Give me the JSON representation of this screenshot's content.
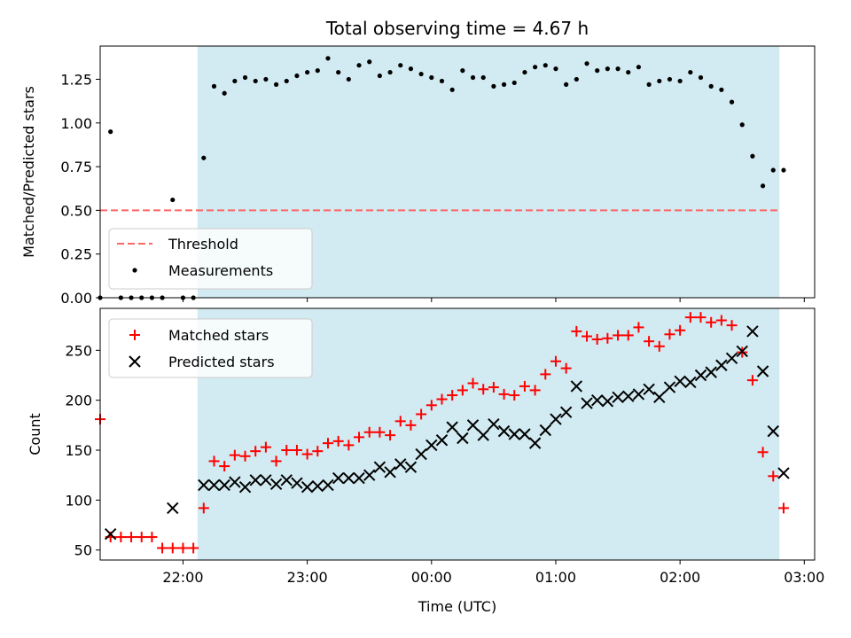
{
  "chart_data": [
    {
      "type": "scatter",
      "title": "Total observing time = 4.67 h",
      "xlabel": "",
      "ylabel": "Matched/Predicted stars",
      "ylim": [
        0,
        1.44
      ],
      "xlim": [
        "21:20",
        "03:05"
      ],
      "yticks": [
        "0.00",
        "0.25",
        "0.50",
        "0.75",
        "1.00",
        "1.25"
      ],
      "shaded_span": {
        "start": "22:07",
        "end": "02:48",
        "color": "#add8e6"
      },
      "threshold": {
        "name": "Threshold",
        "value": 0.5,
        "from": "21:20",
        "to": "02:48",
        "color": "#ff6666"
      },
      "legend_position": "lower-left",
      "series": [
        {
          "name": "Measurements",
          "marker": "dot",
          "color": "#000000",
          "points": [
            [
              "21:20",
              0.0
            ],
            [
              "21:25",
              0.95
            ],
            [
              "21:30",
              0.0
            ],
            [
              "21:35",
              0.0
            ],
            [
              "21:40",
              0.0
            ],
            [
              "21:45",
              0.0
            ],
            [
              "21:50",
              0.0
            ],
            [
              "21:55",
              0.56
            ],
            [
              "22:00",
              0.0
            ],
            [
              "22:05",
              0.0
            ],
            [
              "22:10",
              0.8
            ],
            [
              "22:15",
              1.21
            ],
            [
              "22:20",
              1.17
            ],
            [
              "22:25",
              1.24
            ],
            [
              "22:30",
              1.26
            ],
            [
              "22:35",
              1.24
            ],
            [
              "22:40",
              1.25
            ],
            [
              "22:45",
              1.22
            ],
            [
              "22:50",
              1.24
            ],
            [
              "22:55",
              1.27
            ],
            [
              "23:00",
              1.29
            ],
            [
              "23:05",
              1.3
            ],
            [
              "23:10",
              1.37
            ],
            [
              "23:15",
              1.29
            ],
            [
              "23:20",
              1.25
            ],
            [
              "23:25",
              1.33
            ],
            [
              "23:30",
              1.35
            ],
            [
              "23:35",
              1.27
            ],
            [
              "23:40",
              1.29
            ],
            [
              "23:45",
              1.33
            ],
            [
              "23:50",
              1.31
            ],
            [
              "23:55",
              1.28
            ],
            [
              "00:00",
              1.26
            ],
            [
              "00:05",
              1.24
            ],
            [
              "00:10",
              1.19
            ],
            [
              "00:15",
              1.3
            ],
            [
              "00:20",
              1.26
            ],
            [
              "00:25",
              1.26
            ],
            [
              "00:30",
              1.21
            ],
            [
              "00:35",
              1.22
            ],
            [
              "00:40",
              1.23
            ],
            [
              "00:45",
              1.29
            ],
            [
              "00:50",
              1.32
            ],
            [
              "00:55",
              1.33
            ],
            [
              "01:00",
              1.31
            ],
            [
              "01:05",
              1.22
            ],
            [
              "01:10",
              1.25
            ],
            [
              "01:15",
              1.34
            ],
            [
              "01:20",
              1.3
            ],
            [
              "01:25",
              1.31
            ],
            [
              "01:30",
              1.31
            ],
            [
              "01:35",
              1.29
            ],
            [
              "01:40",
              1.32
            ],
            [
              "01:45",
              1.22
            ],
            [
              "01:50",
              1.24
            ],
            [
              "01:55",
              1.25
            ],
            [
              "02:00",
              1.24
            ],
            [
              "02:05",
              1.29
            ],
            [
              "02:10",
              1.26
            ],
            [
              "02:15",
              1.21
            ],
            [
              "02:20",
              1.19
            ],
            [
              "02:25",
              1.12
            ],
            [
              "02:30",
              0.99
            ],
            [
              "02:35",
              0.81
            ],
            [
              "02:40",
              0.64
            ],
            [
              "02:45",
              0.73
            ],
            [
              "02:50",
              0.73
            ]
          ]
        }
      ]
    },
    {
      "type": "scatter",
      "title": "",
      "xlabel": "Time (UTC)",
      "ylabel": "Count",
      "ylim": [
        40,
        292
      ],
      "xlim": [
        "21:20",
        "03:05"
      ],
      "yticks": [
        "50",
        "100",
        "150",
        "200",
        "250"
      ],
      "xticks": [
        "22:00",
        "23:00",
        "00:00",
        "01:00",
        "02:00",
        "03:00"
      ],
      "shaded_span": {
        "start": "22:07",
        "end": "02:48",
        "color": "#add8e6"
      },
      "legend_position": "upper-left",
      "series": [
        {
          "name": "Matched stars",
          "marker": "plus",
          "color": "#ff0000",
          "points": [
            [
              "21:20",
              181
            ],
            [
              "21:25",
              63
            ],
            [
              "21:30",
              63
            ],
            [
              "21:35",
              63
            ],
            [
              "21:40",
              63
            ],
            [
              "21:45",
              63
            ],
            [
              "21:50",
              52
            ],
            [
              "21:55",
              52
            ],
            [
              "22:00",
              52
            ],
            [
              "22:05",
              52
            ],
            [
              "22:10",
              92
            ],
            [
              "22:15",
              139
            ],
            [
              "22:20",
              134
            ],
            [
              "22:25",
              145
            ],
            [
              "22:30",
              144
            ],
            [
              "22:35",
              149
            ],
            [
              "22:40",
              153
            ],
            [
              "22:45",
              139
            ],
            [
              "22:50",
              150
            ],
            [
              "22:55",
              150
            ],
            [
              "23:00",
              146
            ],
            [
              "23:05",
              149
            ],
            [
              "23:10",
              157
            ],
            [
              "23:15",
              159
            ],
            [
              "23:20",
              155
            ],
            [
              "23:25",
              163
            ],
            [
              "23:30",
              168
            ],
            [
              "23:35",
              168
            ],
            [
              "23:40",
              165
            ],
            [
              "23:45",
              179
            ],
            [
              "23:50",
              175
            ],
            [
              "23:55",
              186
            ],
            [
              "00:00",
              195
            ],
            [
              "00:05",
              201
            ],
            [
              "00:10",
              205
            ],
            [
              "00:15",
              210
            ],
            [
              "00:20",
              217
            ],
            [
              "00:25",
              211
            ],
            [
              "00:30",
              213
            ],
            [
              "00:35",
              206
            ],
            [
              "00:40",
              205
            ],
            [
              "00:45",
              214
            ],
            [
              "00:50",
              210
            ],
            [
              "00:55",
              226
            ],
            [
              "01:00",
              239
            ],
            [
              "01:05",
              232
            ],
            [
              "01:10",
              269
            ],
            [
              "01:15",
              264
            ],
            [
              "01:20",
              261
            ],
            [
              "01:25",
              262
            ],
            [
              "01:30",
              265
            ],
            [
              "01:35",
              265
            ],
            [
              "01:40",
              273
            ],
            [
              "01:45",
              259
            ],
            [
              "01:50",
              254
            ],
            [
              "01:55",
              266
            ],
            [
              "02:00",
              270
            ],
            [
              "02:05",
              283
            ],
            [
              "02:10",
              283
            ],
            [
              "02:15",
              278
            ],
            [
              "02:20",
              280
            ],
            [
              "02:25",
              275
            ],
            [
              "02:30",
              248
            ],
            [
              "02:35",
              220
            ],
            [
              "02:40",
              148
            ],
            [
              "02:45",
              124
            ],
            [
              "02:50",
              92
            ]
          ]
        },
        {
          "name": "Predicted stars",
          "marker": "x",
          "color": "#000000",
          "points": [
            [
              "21:25",
              66
            ],
            [
              "21:55",
              92
            ],
            [
              "22:10",
              115
            ],
            [
              "22:15",
              115
            ],
            [
              "22:20",
              115
            ],
            [
              "22:25",
              118
            ],
            [
              "22:30",
              113
            ],
            [
              "22:35",
              120
            ],
            [
              "22:40",
              120
            ],
            [
              "22:45",
              116
            ],
            [
              "22:50",
              120
            ],
            [
              "22:55",
              117
            ],
            [
              "23:00",
              113
            ],
            [
              "23:05",
              114
            ],
            [
              "23:10",
              115
            ],
            [
              "23:15",
              122
            ],
            [
              "23:20",
              122
            ],
            [
              "23:25",
              122
            ],
            [
              "23:30",
              125
            ],
            [
              "23:35",
              133
            ],
            [
              "23:40",
              128
            ],
            [
              "23:45",
              136
            ],
            [
              "23:50",
              133
            ],
            [
              "23:55",
              146
            ],
            [
              "00:00",
              155
            ],
            [
              "00:05",
              160
            ],
            [
              "00:10",
              173
            ],
            [
              "00:15",
              162
            ],
            [
              "00:20",
              175
            ],
            [
              "00:25",
              165
            ],
            [
              "00:30",
              176
            ],
            [
              "00:35",
              169
            ],
            [
              "00:40",
              166
            ],
            [
              "00:45",
              166
            ],
            [
              "00:50",
              157
            ],
            [
              "00:55",
              170
            ],
            [
              "01:00",
              181
            ],
            [
              "01:05",
              188
            ],
            [
              "01:10",
              214
            ],
            [
              "01:15",
              197
            ],
            [
              "01:20",
              200
            ],
            [
              "01:25",
              199
            ],
            [
              "01:30",
              203
            ],
            [
              "01:35",
              204
            ],
            [
              "01:40",
              206
            ],
            [
              "01:45",
              211
            ],
            [
              "01:50",
              203
            ],
            [
              "01:55",
              213
            ],
            [
              "02:00",
              219
            ],
            [
              "02:05",
              218
            ],
            [
              "02:10",
              225
            ],
            [
              "02:15",
              228
            ],
            [
              "02:20",
              235
            ],
            [
              "02:25",
              242
            ],
            [
              "02:30",
              249
            ],
            [
              "02:35",
              269
            ],
            [
              "02:40",
              229
            ],
            [
              "02:45",
              169
            ],
            [
              "02:50",
              127
            ]
          ]
        }
      ]
    }
  ]
}
